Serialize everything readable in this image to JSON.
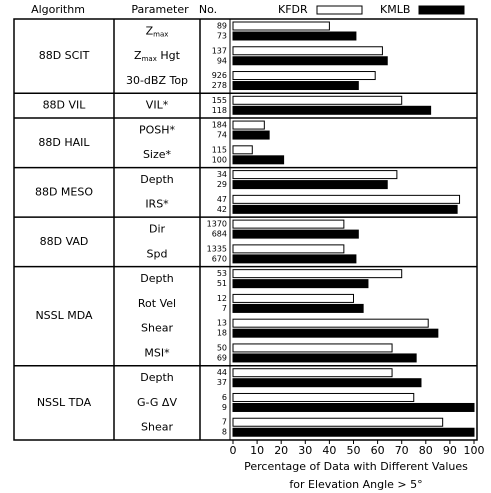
{
  "chart_data": {
    "type": "bar",
    "headers": {
      "algorithm": "Algorithm",
      "parameter": "Parameter",
      "number": "No."
    },
    "groups": [
      {
        "name": "88D SCIT",
        "parameters": [
          {
            "label": "Z",
            "sub": "max"
          },
          {
            "label": "Z",
            "sub": "max",
            "rest": " Hgt"
          },
          "30-dBZ Top"
        ]
      },
      {
        "name": "88D VIL",
        "parameters": [
          "VIL*"
        ]
      },
      {
        "name": "88D HAIL",
        "parameters": [
          "POSH*",
          "Size*"
        ]
      },
      {
        "name": "88D MESO",
        "parameters": [
          "Depth",
          "IRS*"
        ]
      },
      {
        "name": "88D VAD",
        "parameters": [
          "Dir",
          "Spd"
        ]
      },
      {
        "name": "NSSL MDA",
        "parameters": [
          "Depth",
          "Rot Vel",
          "Shear",
          "MSI*"
        ]
      },
      {
        "name": "NSSL TDA",
        "parameters": [
          "Depth",
          "G-G ΔV",
          "Shear"
        ]
      }
    ],
    "series": [
      {
        "name": "KFDR",
        "color": "#ffffff",
        "counts": [
          89,
          137,
          926,
          155,
          184,
          115,
          34,
          47,
          1370,
          1335,
          53,
          12,
          13,
          50,
          44,
          6,
          7
        ],
        "values": [
          40,
          62,
          59,
          70,
          13,
          8,
          68,
          94,
          46,
          46,
          70,
          50,
          81,
          66,
          66,
          75,
          87
        ]
      },
      {
        "name": "KMLB",
        "color": "#000000",
        "counts": [
          73,
          94,
          278,
          118,
          74,
          100,
          29,
          42,
          684,
          670,
          51,
          7,
          18,
          69,
          37,
          9,
          8
        ],
        "values": [
          51,
          64,
          52,
          82,
          15,
          21,
          64,
          93,
          52,
          51,
          56,
          54,
          85,
          76,
          78,
          100,
          100
        ]
      }
    ],
    "xlim": [
      0,
      100
    ],
    "xticks": [
      0,
      10,
      20,
      30,
      40,
      50,
      60,
      70,
      80,
      90,
      100
    ],
    "x_label": [
      "Percentage of Data with Different Values",
      "for Elevation Angle > 5°"
    ]
  }
}
